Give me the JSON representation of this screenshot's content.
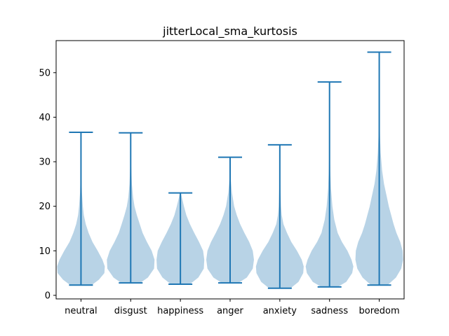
{
  "chart_data": {
    "type": "violin",
    "title": "jitterLocal_sma_kurtosis",
    "xlabel": "",
    "ylabel": "",
    "ylim": [
      -0.8,
      57.2
    ],
    "yticks": [
      0,
      10,
      20,
      30,
      40,
      50
    ],
    "grid": false,
    "colors": {
      "body": "#a6c8e0",
      "line": "#1f77b4"
    },
    "categories": [
      "neutral",
      "disgust",
      "happiness",
      "anger",
      "anxiety",
      "sadness",
      "boredom"
    ],
    "series": [
      {
        "category": "neutral",
        "min": 2.3,
        "max": 36.6,
        "density": [
          [
            2.3,
            0.45
          ],
          [
            3.5,
            0.75
          ],
          [
            5,
            0.98
          ],
          [
            6.5,
            1.0
          ],
          [
            8,
            0.9
          ],
          [
            10,
            0.7
          ],
          [
            12,
            0.48
          ],
          [
            14,
            0.32
          ],
          [
            16,
            0.2
          ],
          [
            18,
            0.12
          ],
          [
            20,
            0.08
          ],
          [
            23,
            0.04
          ],
          [
            27,
            0.015
          ],
          [
            32,
            0.005
          ],
          [
            36.6,
            0
          ]
        ]
      },
      {
        "category": "disgust",
        "min": 2.8,
        "max": 36.5,
        "density": [
          [
            2.8,
            0.4
          ],
          [
            4,
            0.72
          ],
          [
            6,
            0.98
          ],
          [
            8,
            1.0
          ],
          [
            10,
            0.88
          ],
          [
            12,
            0.68
          ],
          [
            14,
            0.5
          ],
          [
            16,
            0.38
          ],
          [
            18,
            0.26
          ],
          [
            20,
            0.16
          ],
          [
            22,
            0.1
          ],
          [
            25,
            0.05
          ],
          [
            29,
            0.02
          ],
          [
            33,
            0.008
          ],
          [
            36.5,
            0
          ]
        ]
      },
      {
        "category": "happiness",
        "min": 2.5,
        "max": 23.0,
        "density": [
          [
            2.5,
            0.4
          ],
          [
            4,
            0.75
          ],
          [
            6,
            0.98
          ],
          [
            8,
            1.0
          ],
          [
            10,
            0.95
          ],
          [
            12,
            0.78
          ],
          [
            14,
            0.58
          ],
          [
            16,
            0.4
          ],
          [
            18,
            0.25
          ],
          [
            20,
            0.15
          ],
          [
            22,
            0.06
          ],
          [
            23,
            0.02
          ]
        ]
      },
      {
        "category": "anger",
        "min": 2.8,
        "max": 31.0,
        "density": [
          [
            2.8,
            0.35
          ],
          [
            4,
            0.7
          ],
          [
            6,
            0.95
          ],
          [
            8,
            1.0
          ],
          [
            10,
            0.95
          ],
          [
            12,
            0.8
          ],
          [
            14,
            0.6
          ],
          [
            16,
            0.42
          ],
          [
            18,
            0.28
          ],
          [
            20,
            0.17
          ],
          [
            23,
            0.08
          ],
          [
            26,
            0.03
          ],
          [
            29,
            0.01
          ],
          [
            31,
            0
          ]
        ]
      },
      {
        "category": "anxiety",
        "min": 1.6,
        "max": 33.8,
        "density": [
          [
            1.6,
            0.45
          ],
          [
            3,
            0.78
          ],
          [
            5,
            0.98
          ],
          [
            6.5,
            1.0
          ],
          [
            8,
            0.92
          ],
          [
            10,
            0.72
          ],
          [
            12,
            0.48
          ],
          [
            14,
            0.3
          ],
          [
            16,
            0.15
          ],
          [
            18,
            0.08
          ],
          [
            20,
            0.05
          ],
          [
            24,
            0.025
          ],
          [
            28,
            0.012
          ],
          [
            33.8,
            0
          ]
        ]
      },
      {
        "category": "sadness",
        "min": 1.9,
        "max": 47.9,
        "density": [
          [
            1.9,
            0.35
          ],
          [
            3,
            0.7
          ],
          [
            5,
            0.95
          ],
          [
            6.5,
            1.0
          ],
          [
            8,
            0.92
          ],
          [
            10,
            0.75
          ],
          [
            12,
            0.52
          ],
          [
            14,
            0.34
          ],
          [
            17,
            0.2
          ],
          [
            20,
            0.12
          ],
          [
            24,
            0.06
          ],
          [
            28,
            0.03
          ],
          [
            33,
            0.012
          ],
          [
            40,
            0.004
          ],
          [
            47.9,
            0
          ]
        ]
      },
      {
        "category": "boredom",
        "min": 2.3,
        "max": 54.6,
        "density": [
          [
            2.3,
            0.35
          ],
          [
            4,
            0.7
          ],
          [
            6,
            0.92
          ],
          [
            8,
            1.0
          ],
          [
            10,
            0.98
          ],
          [
            12,
            0.88
          ],
          [
            14,
            0.72
          ],
          [
            16,
            0.6
          ],
          [
            18,
            0.5
          ],
          [
            20,
            0.4
          ],
          [
            22,
            0.32
          ],
          [
            25,
            0.2
          ],
          [
            28,
            0.12
          ],
          [
            32,
            0.06
          ],
          [
            36,
            0.03
          ],
          [
            42,
            0.01
          ],
          [
            48,
            0.004
          ],
          [
            54.6,
            0
          ]
        ]
      }
    ]
  }
}
